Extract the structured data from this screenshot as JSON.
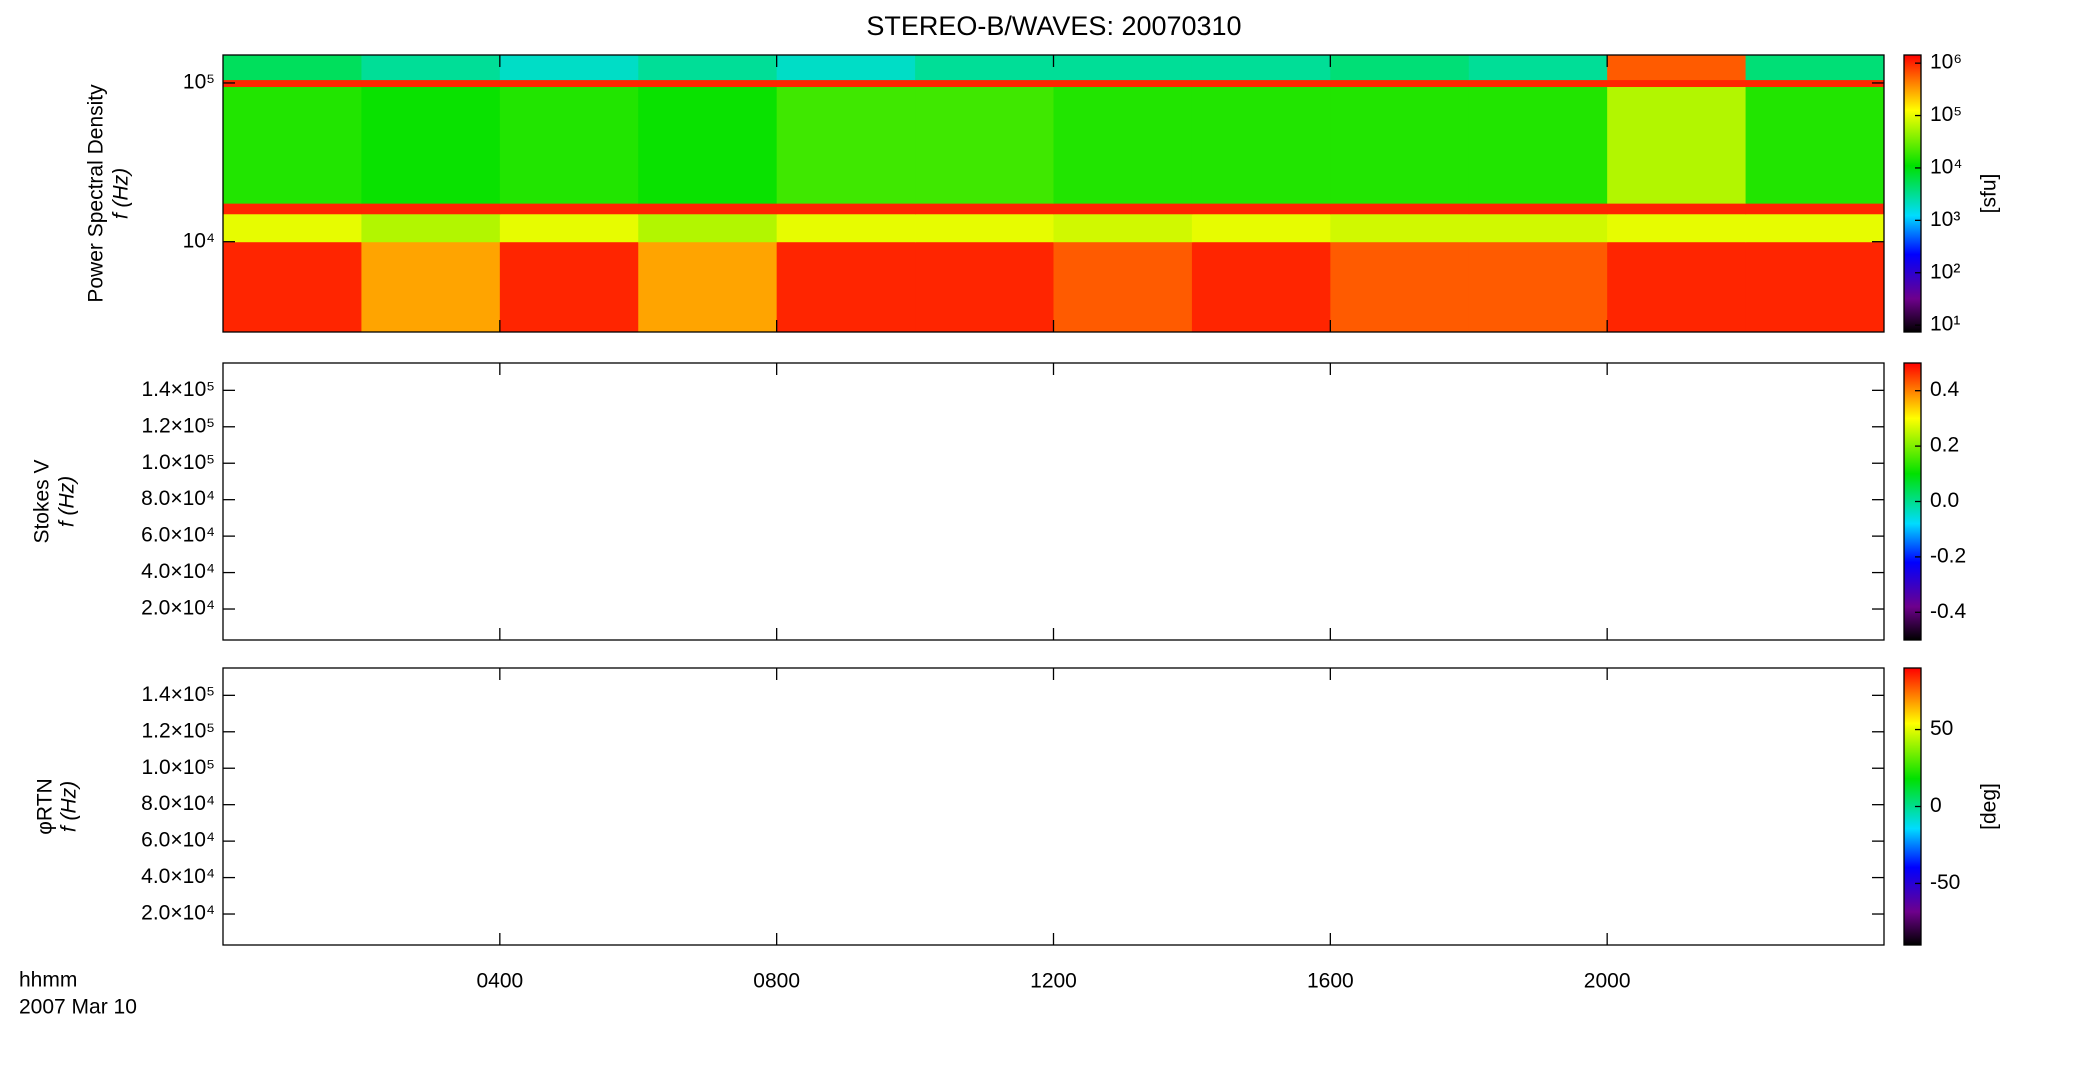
{
  "chart_data": [
    {
      "type": "heatmap",
      "title": "STEREO-B/WAVES: 20070310",
      "ylabel": "Power Spectral Density",
      "ylabel2": "f (Hz)",
      "ylog": true,
      "xlim": [
        0,
        24
      ],
      "xticks": [
        {
          "value": 4,
          "label": "0400"
        },
        {
          "value": 8,
          "label": "0800"
        },
        {
          "value": 12,
          "label": "1200"
        },
        {
          "value": 16,
          "label": "1600"
        },
        {
          "value": 20,
          "label": "2000"
        }
      ],
      "ylim": [
        2700,
        150000
      ],
      "yticks": [
        {
          "value": 10000,
          "label": "10⁴"
        },
        {
          "value": 100000,
          "label": "10⁵"
        }
      ],
      "x_edges": [
        0,
        2,
        4,
        6,
        8,
        10,
        12,
        14,
        16,
        18,
        20,
        22,
        24
      ],
      "y_edges": [
        2700,
        10000,
        15000,
        17500,
        95000,
        105000,
        150000
      ],
      "z": [
        [
          1000000,
          300000,
          1000000,
          300000,
          1000000,
          1000000,
          600000,
          1000000,
          600000,
          600000,
          1000000,
          1000000
        ],
        [
          100000,
          60000,
          100000,
          60000,
          100000,
          100000,
          80000,
          100000,
          80000,
          80000,
          100000,
          100000
        ],
        [
          1000000,
          1000000,
          1000000,
          1000000,
          1000000,
          1000000,
          1000000,
          1000000,
          1000000,
          1000000,
          1000000,
          1000000
        ],
        [
          15000,
          12000,
          15000,
          12000,
          20000,
          20000,
          15000,
          15000,
          15000,
          15000,
          60000,
          15000
        ],
        [
          1000000,
          1000000,
          1000000,
          1000000,
          1000000,
          1000000,
          1000000,
          1000000,
          1000000,
          1000000,
          1000000,
          1000000
        ],
        [
          5000,
          3000,
          2000,
          3000,
          2000,
          3000,
          3000,
          3000,
          4000,
          3000,
          600000,
          4000
        ]
      ],
      "zlog": true,
      "zlim": [
        7.4,
        1430000
      ],
      "zticks": [
        {
          "value": 10,
          "label": "10¹"
        },
        {
          "value": 100,
          "label": "10²"
        },
        {
          "value": 1000,
          "label": "10³"
        },
        {
          "value": 10000,
          "label": "10⁴"
        },
        {
          "value": 100000,
          "label": "10⁵"
        },
        {
          "value": 1000000,
          "label": "10⁶"
        }
      ],
      "zlabel": "[sfu]"
    },
    {
      "type": "heatmap",
      "ylabel": "Stokes V",
      "ylabel2": "f (Hz)",
      "ylog": false,
      "xlim": [
        0,
        24
      ],
      "xticks": [
        {
          "value": 4,
          "label": "0400"
        },
        {
          "value": 8,
          "label": "0800"
        },
        {
          "value": 12,
          "label": "1200"
        },
        {
          "value": 16,
          "label": "1600"
        },
        {
          "value": 20,
          "label": "2000"
        }
      ],
      "ylim": [
        3000,
        155000
      ],
      "yticks": [
        {
          "value": 20000,
          "label": "2.0×10⁴"
        },
        {
          "value": 40000,
          "label": "4.0×10⁴"
        },
        {
          "value": 60000,
          "label": "6.0×10⁴"
        },
        {
          "value": 80000,
          "label": "8.0×10⁴"
        },
        {
          "value": 100000,
          "label": "1.0×10⁵"
        },
        {
          "value": 120000,
          "label": "1.2×10⁵"
        },
        {
          "value": 140000,
          "label": "1.4×10⁵"
        }
      ],
      "zlog": false,
      "zlim": [
        -0.5,
        0.5
      ],
      "zticks": [
        -0.4,
        -0.2,
        {
          "value": 0,
          "label": "0.0"
        },
        0.2,
        0.4
      ]
    },
    {
      "type": "heatmap",
      "ylabel": "φRTN",
      "ylabel2": "f (Hz)",
      "ylog": false,
      "xlabel": "hhmm",
      "xlabel2": "2007 Mar 10",
      "xlim": [
        0,
        24
      ],
      "xticks": [
        {
          "value": 4,
          "label": "0400"
        },
        {
          "value": 8,
          "label": "0800"
        },
        {
          "value": 12,
          "label": "1200"
        },
        {
          "value": 16,
          "label": "1600"
        },
        {
          "value": 20,
          "label": "2000"
        }
      ],
      "ylim": [
        3000,
        155000
      ],
      "yticks": [
        {
          "value": 20000,
          "label": "2.0×10⁴"
        },
        {
          "value": 40000,
          "label": "4.0×10⁴"
        },
        {
          "value": 60000,
          "label": "6.0×10⁴"
        },
        {
          "value": 80000,
          "label": "8.0×10⁴"
        },
        {
          "value": 100000,
          "label": "1.0×10⁵"
        },
        {
          "value": 120000,
          "label": "1.2×10⁵"
        },
        {
          "value": 140000,
          "label": "1.4×10⁵"
        }
      ],
      "zlog": false,
      "zlim": [
        -90,
        90
      ],
      "zticks": [
        -50,
        0,
        50
      ],
      "zlabel": "[deg]"
    }
  ]
}
